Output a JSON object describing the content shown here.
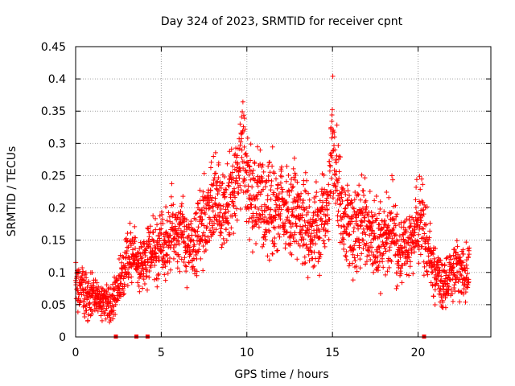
{
  "chart_data": {
    "type": "scatter",
    "title": "Day 324 of 2023, SRMTID for receiver cpnt",
    "xlabel": "GPS time / hours",
    "ylabel": "SRMTID / TECUs",
    "xlim": [
      0,
      24.25
    ],
    "ylim": [
      0,
      0.45
    ],
    "xticks": [
      0,
      5,
      10,
      15,
      20
    ],
    "yticks": [
      0,
      0.05,
      0.1,
      0.15,
      0.2,
      0.25,
      0.3,
      0.35,
      0.4,
      0.45
    ],
    "xtick_labels": [
      "0",
      "5",
      "10",
      "15",
      "20"
    ],
    "ytick_labels": [
      "0",
      "0.05",
      "0.1",
      "0.15",
      "0.2",
      "0.25",
      "0.3",
      "0.35",
      "0.4",
      "0.45"
    ],
    "grid": true,
    "marker": "+",
    "color": "#ff0000",
    "series": [
      {
        "name": "SRMTID",
        "x": [
          0.0,
          0.25,
          0.5,
          0.75,
          1.0,
          1.25,
          1.5,
          1.75,
          2.0,
          2.25,
          2.5,
          2.75,
          3.0,
          3.25,
          3.5,
          3.75,
          4.0,
          4.25,
          4.5,
          4.75,
          5.0,
          5.25,
          5.5,
          5.75,
          6.0,
          6.25,
          6.5,
          6.75,
          7.0,
          7.25,
          7.5,
          7.75,
          8.0,
          8.25,
          8.5,
          8.75,
          9.0,
          9.25,
          9.5,
          9.75,
          10.0,
          10.25,
          10.5,
          10.75,
          11.0,
          11.25,
          11.5,
          11.75,
          12.0,
          12.25,
          12.5,
          12.75,
          13.0,
          13.25,
          13.5,
          13.75,
          14.0,
          14.25,
          14.5,
          14.75,
          15.0,
          15.25,
          15.5,
          15.75,
          16.0,
          16.25,
          16.5,
          16.75,
          17.0,
          17.25,
          17.5,
          17.75,
          18.0,
          18.25,
          18.5,
          18.75,
          19.0,
          19.25,
          19.5,
          19.75,
          20.0,
          20.25,
          20.5,
          20.75,
          21.0,
          21.25,
          21.5,
          21.75,
          22.0,
          22.25,
          22.5,
          22.75,
          23.0
        ],
        "y": [
          0.09,
          0.08,
          0.07,
          0.06,
          0.07,
          0.06,
          0.05,
          0.06,
          0.05,
          0.06,
          0.08,
          0.1,
          0.12,
          0.13,
          0.12,
          0.11,
          0.12,
          0.13,
          0.14,
          0.13,
          0.15,
          0.14,
          0.16,
          0.17,
          0.16,
          0.17,
          0.15,
          0.14,
          0.15,
          0.17,
          0.18,
          0.2,
          0.21,
          0.22,
          0.2,
          0.19,
          0.21,
          0.23,
          0.26,
          0.3,
          0.24,
          0.22,
          0.21,
          0.23,
          0.2,
          0.19,
          0.21,
          0.2,
          0.22,
          0.19,
          0.18,
          0.2,
          0.19,
          0.18,
          0.17,
          0.16,
          0.18,
          0.17,
          0.19,
          0.2,
          0.3,
          0.25,
          0.2,
          0.18,
          0.17,
          0.16,
          0.18,
          0.19,
          0.17,
          0.16,
          0.15,
          0.14,
          0.15,
          0.16,
          0.17,
          0.14,
          0.13,
          0.15,
          0.14,
          0.16,
          0.18,
          0.17,
          0.15,
          0.12,
          0.1,
          0.09,
          0.08,
          0.09,
          0.1,
          0.11,
          0.09,
          0.1,
          0.12
        ],
        "spread": [
          0.03,
          0.03,
          0.025,
          0.025,
          0.025,
          0.02,
          0.02,
          0.02,
          0.02,
          0.02,
          0.025,
          0.03,
          0.03,
          0.035,
          0.03,
          0.03,
          0.03,
          0.035,
          0.035,
          0.035,
          0.04,
          0.04,
          0.04,
          0.04,
          0.04,
          0.045,
          0.04,
          0.04,
          0.045,
          0.05,
          0.05,
          0.05,
          0.05,
          0.05,
          0.05,
          0.05,
          0.05,
          0.06,
          0.06,
          0.07,
          0.06,
          0.05,
          0.05,
          0.05,
          0.05,
          0.05,
          0.05,
          0.05,
          0.05,
          0.05,
          0.05,
          0.05,
          0.05,
          0.05,
          0.05,
          0.045,
          0.05,
          0.05,
          0.05,
          0.05,
          0.08,
          0.06,
          0.05,
          0.05,
          0.05,
          0.05,
          0.05,
          0.05,
          0.05,
          0.05,
          0.045,
          0.045,
          0.045,
          0.045,
          0.045,
          0.04,
          0.04,
          0.04,
          0.04,
          0.045,
          0.05,
          0.045,
          0.04,
          0.035,
          0.03,
          0.03,
          0.025,
          0.025,
          0.03,
          0.03,
          0.03,
          0.03,
          0.03
        ]
      }
    ],
    "gap_markers_x": [
      2.35,
      3.55,
      4.2,
      20.35
    ]
  }
}
